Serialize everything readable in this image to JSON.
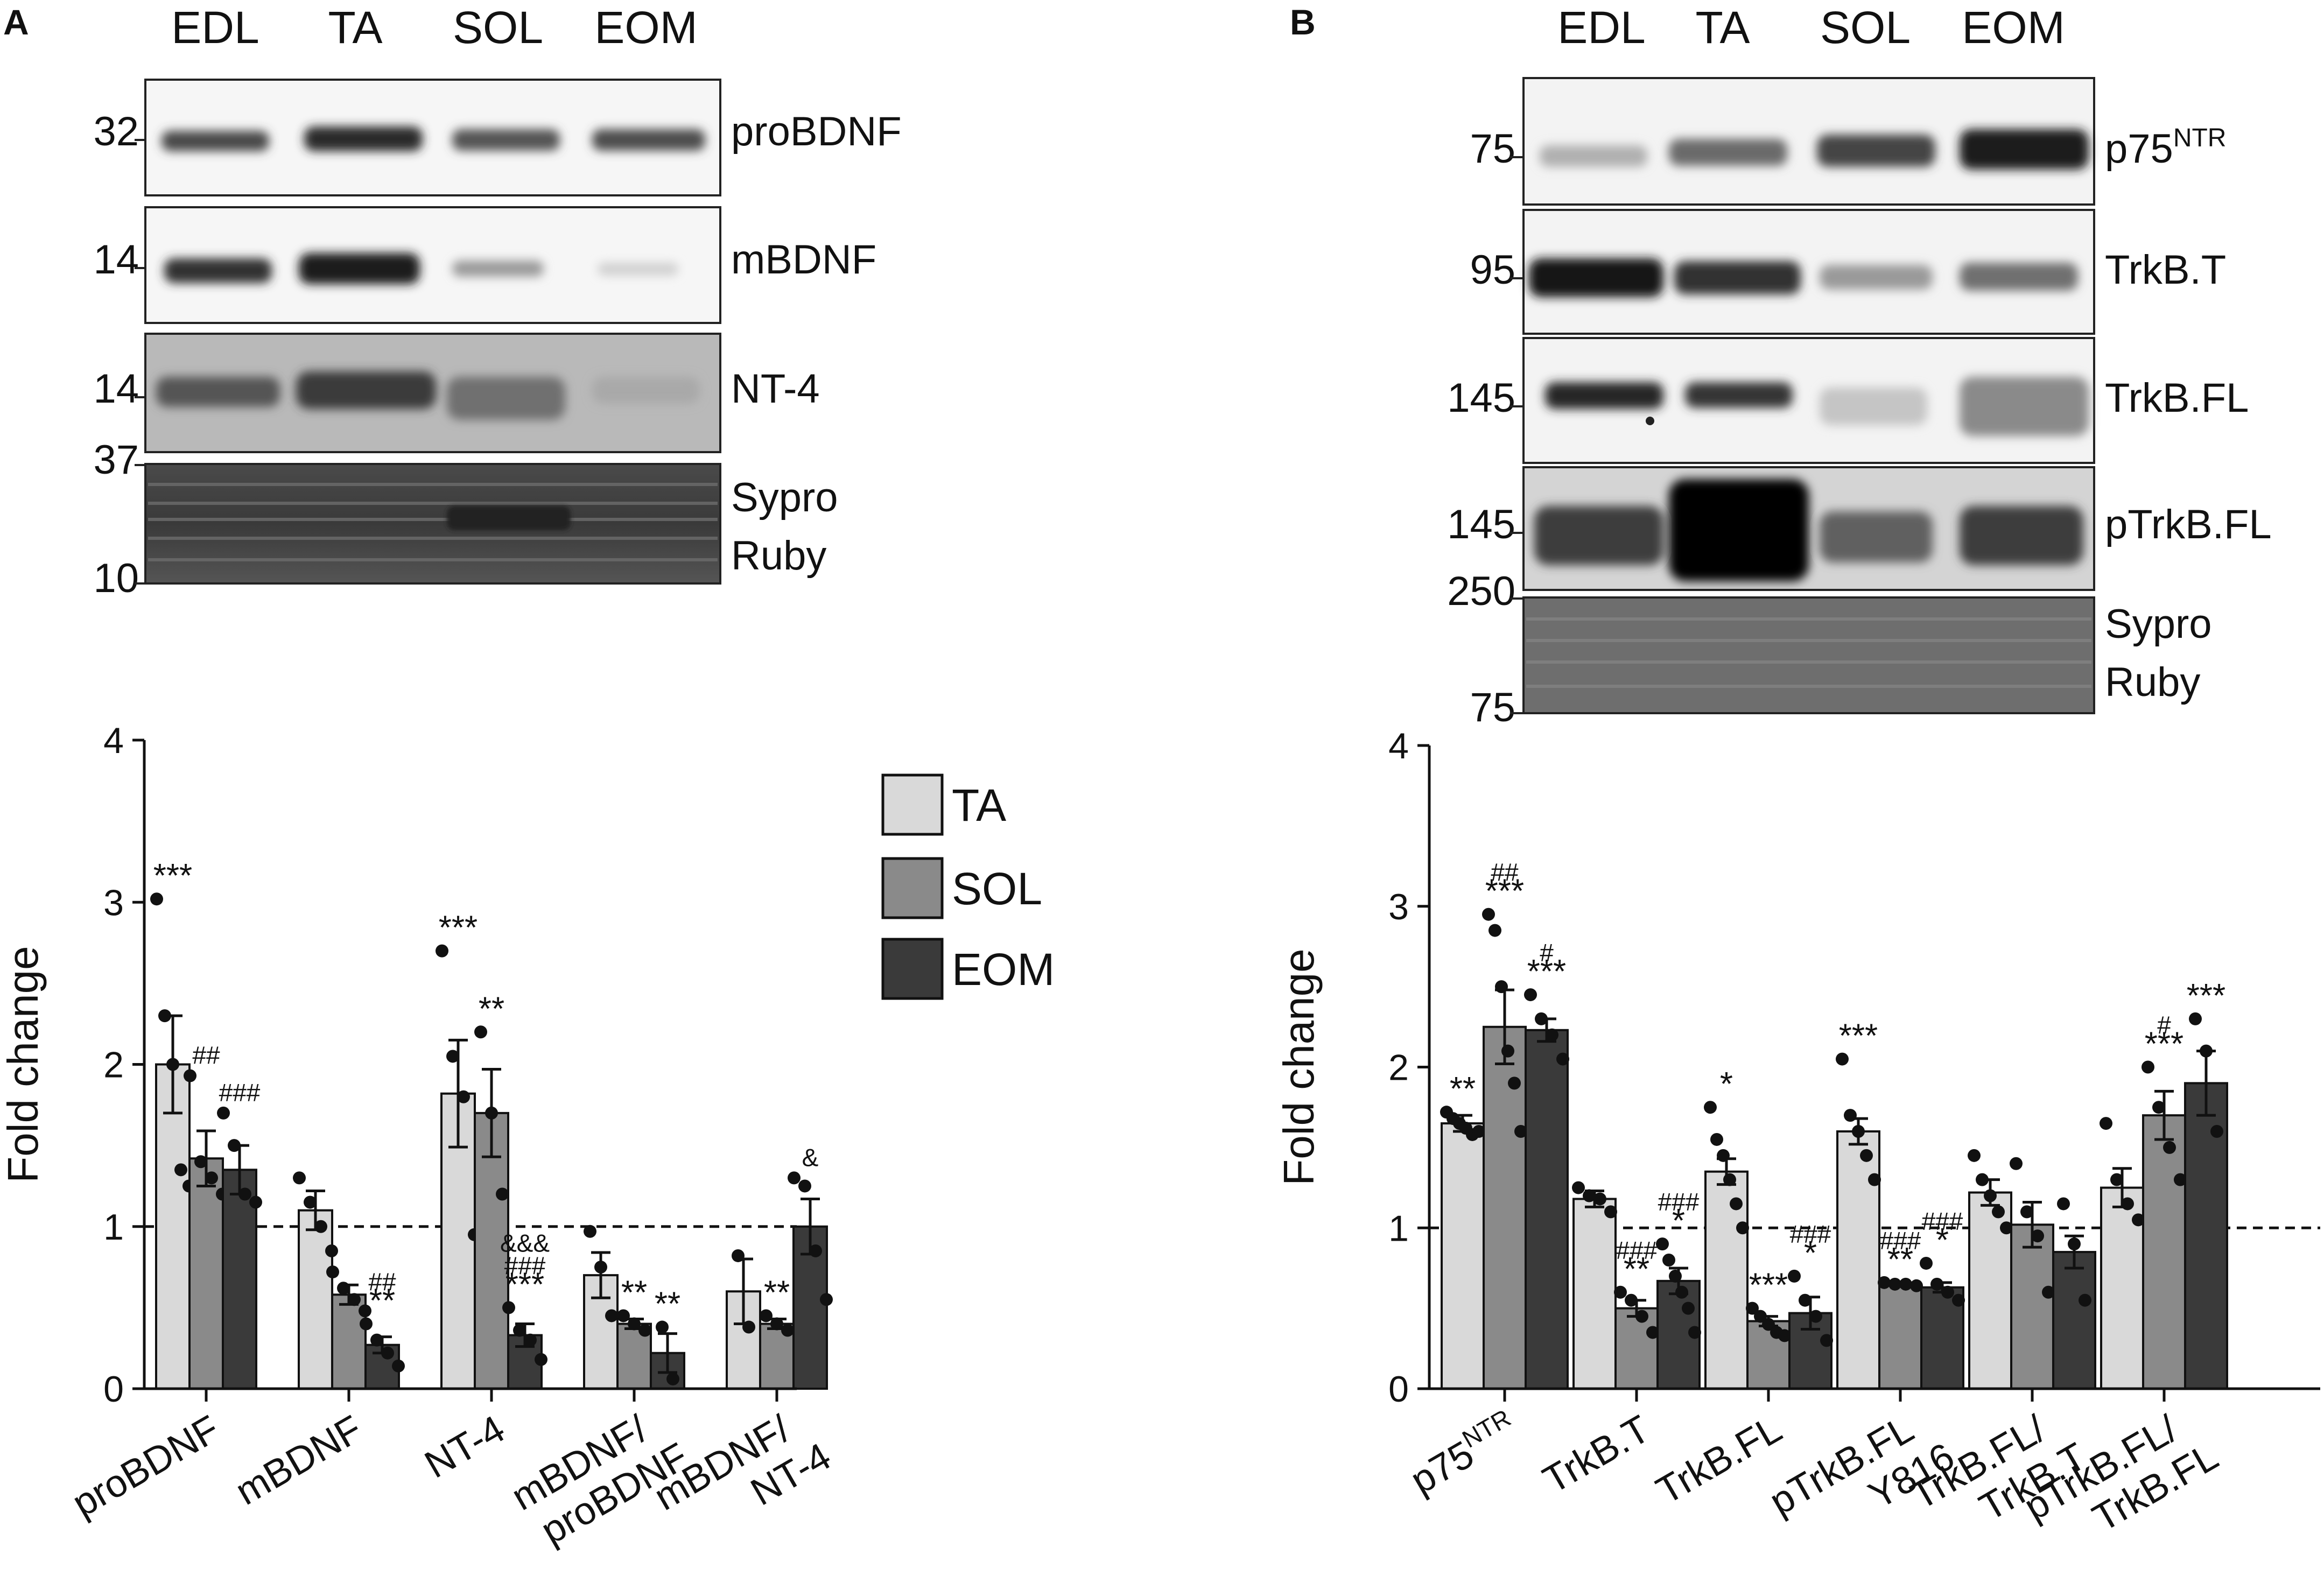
{
  "panel_a": {
    "letter": "A",
    "lanes": [
      "EDL",
      "TA",
      "SOL",
      "EOM"
    ],
    "blots": [
      {
        "name": "proBDNF",
        "mw": [
          "32"
        ]
      },
      {
        "name": "mBDNF",
        "mw": [
          "14"
        ]
      },
      {
        "name": "NT-4",
        "mw": [
          "14"
        ]
      },
      {
        "name": "Sypro Ruby",
        "mw": [
          "37",
          "10"
        ]
      }
    ]
  },
  "panel_b": {
    "letter": "B",
    "lanes": [
      "EDL",
      "TA",
      "SOL",
      "EOM"
    ],
    "blots": [
      {
        "name": "p75",
        "name_sup": "NTR",
        "mw": [
          "75"
        ]
      },
      {
        "name": "TrkB.T",
        "mw": [
          "95"
        ]
      },
      {
        "name": "TrkB.FL",
        "mw": [
          "145"
        ]
      },
      {
        "name": "pTrkB.FL",
        "mw": [
          "145"
        ]
      },
      {
        "name": "Sypro Ruby",
        "mw": [
          "250",
          "75"
        ]
      }
    ]
  },
  "legend": {
    "items": [
      {
        "label": "TA",
        "color": "#d9d9d9"
      },
      {
        "label": "SOL",
        "color": "#8a8a8a"
      },
      {
        "label": "EOM",
        "color": "#3a3a3a"
      }
    ]
  },
  "chart_data": [
    {
      "type": "bar",
      "panel": "A",
      "ylabel": "Fold change",
      "ylim": [
        0,
        4
      ],
      "yticks": [
        "0",
        "1",
        "2",
        "3",
        "4"
      ],
      "reference_line": 1,
      "series_names": [
        "TA",
        "SOL",
        "EOM"
      ],
      "categories": [
        {
          "label": "proBDNF",
          "lines": [
            "proBDNF"
          ]
        },
        {
          "label": "mBDNF",
          "lines": [
            "mBDNF"
          ]
        },
        {
          "label": "NT-4",
          "lines": [
            "NT-4"
          ]
        },
        {
          "label": "mBDNF/proBDNF",
          "lines": [
            "mBDNF/",
            "proBDNF"
          ]
        },
        {
          "label": "mBDNF/NT-4",
          "lines": [
            "mBDNF/",
            "NT-4"
          ]
        }
      ],
      "groups": [
        {
          "bars": [
            {
              "series": "TA",
              "value": 2.0,
              "sem": 0.3,
              "points": [
                3.02,
                2.3,
                2.0,
                1.35,
                1.25
              ],
              "annot": [
                "***"
              ]
            },
            {
              "series": "SOL",
              "value": 1.42,
              "sem": 0.17,
              "points": [
                1.93,
                1.4,
                1.3,
                1.2
              ],
              "annot": [
                "##"
              ]
            },
            {
              "series": "EOM",
              "value": 1.35,
              "sem": 0.15,
              "points": [
                1.7,
                1.5,
                1.2,
                1.15
              ],
              "annot": [
                "###"
              ]
            }
          ]
        },
        {
          "bars": [
            {
              "series": "TA",
              "value": 1.1,
              "sem": 0.12,
              "points": [
                1.3,
                1.15,
                1.0,
                0.85
              ],
              "annot": []
            },
            {
              "series": "SOL",
              "value": 0.58,
              "sem": 0.06,
              "points": [
                0.72,
                0.62,
                0.55,
                0.48
              ],
              "annot": []
            },
            {
              "series": "EOM",
              "value": 0.27,
              "sem": 0.05,
              "points": [
                0.4,
                0.3,
                0.22,
                0.14
              ],
              "annot": [
                "##",
                "**"
              ]
            }
          ]
        },
        {
          "bars": [
            {
              "series": "TA",
              "value": 1.82,
              "sem": 0.33,
              "points": [
                2.7,
                2.05,
                1.8,
                0.95
              ],
              "annot": [
                "***"
              ]
            },
            {
              "series": "SOL",
              "value": 1.7,
              "sem": 0.27,
              "points": [
                2.2,
                1.7,
                1.2
              ],
              "annot": [
                "**"
              ]
            },
            {
              "series": "EOM",
              "value": 0.33,
              "sem": 0.07,
              "points": [
                0.5,
                0.36,
                0.3,
                0.18
              ],
              "annot": [
                "&&&",
                "###",
                "***"
              ]
            }
          ]
        },
        {
          "bars": [
            {
              "series": "TA",
              "value": 0.7,
              "sem": 0.14,
              "points": [
                0.97,
                0.75,
                0.45
              ],
              "annot": []
            },
            {
              "series": "SOL",
              "value": 0.4,
              "sem": 0.03,
              "points": [
                0.45,
                0.4,
                0.36
              ],
              "annot": [
                "**"
              ]
            },
            {
              "series": "EOM",
              "value": 0.22,
              "sem": 0.12,
              "points": [
                0.38,
                0.06
              ],
              "annot": [
                "**"
              ]
            }
          ]
        },
        {
          "bars": [
            {
              "series": "TA",
              "value": 0.6,
              "sem": 0.2,
              "points": [
                0.82,
                0.38
              ],
              "annot": []
            },
            {
              "series": "SOL",
              "value": 0.4,
              "sem": 0.03,
              "points": [
                0.45,
                0.4,
                0.36
              ],
              "annot": [
                "**"
              ]
            },
            {
              "series": "EOM",
              "value": 1.0,
              "sem": 0.17,
              "points": [
                1.3,
                1.25,
                0.85,
                0.55
              ],
              "annot": [
                "&"
              ]
            }
          ]
        }
      ]
    },
    {
      "type": "bar",
      "panel": "B",
      "ylabel": "Fold change",
      "ylim": [
        0,
        4
      ],
      "yticks": [
        "0",
        "1",
        "2",
        "3",
        "4"
      ],
      "reference_line": 1,
      "series_names": [
        "TA",
        "SOL",
        "EOM"
      ],
      "categories": [
        {
          "label": "p75NTR",
          "lines": [
            "p75"
          ],
          "sup": "NTR"
        },
        {
          "label": "TrkB.T",
          "lines": [
            "TrkB.T"
          ]
        },
        {
          "label": "TrkB.FL",
          "lines": [
            "TrkB.FL"
          ]
        },
        {
          "label": "pTrkB.FL/Y816",
          "lines": [
            "pTrkB.FL",
            "Y816"
          ]
        },
        {
          "label": "TrkB.FL/TrkB.T",
          "lines": [
            "TrkB.FL/",
            "TrkB.T"
          ]
        },
        {
          "label": "pTrkB.FL/TrkB.FL",
          "lines": [
            "pTrkB.FL/",
            "TrkB.FL"
          ]
        }
      ],
      "groups": [
        {
          "bars": [
            {
              "series": "TA",
              "value": 1.65,
              "sem": 0.05,
              "points": [
                1.72,
                1.68,
                1.65,
                1.62,
                1.58,
                1.6
              ],
              "annot": [
                "**"
              ]
            },
            {
              "series": "SOL",
              "value": 2.25,
              "sem": 0.23,
              "points": [
                2.95,
                2.85,
                2.5,
                2.1,
                1.9,
                1.6
              ],
              "annot": [
                "##",
                "***"
              ]
            },
            {
              "series": "EOM",
              "value": 2.23,
              "sem": 0.07,
              "points": [
                2.45,
                2.3,
                2.2,
                2.05
              ],
              "annot": [
                "#",
                "***"
              ]
            }
          ]
        },
        {
          "bars": [
            {
              "series": "TA",
              "value": 1.18,
              "sem": 0.05,
              "points": [
                1.25,
                1.2,
                1.18,
                1.1
              ],
              "annot": []
            },
            {
              "series": "SOL",
              "value": 0.5,
              "sem": 0.05,
              "points": [
                0.6,
                0.55,
                0.45,
                0.35
              ],
              "annot": [
                "###",
                "**"
              ]
            },
            {
              "series": "EOM",
              "value": 0.67,
              "sem": 0.08,
              "points": [
                0.9,
                0.8,
                0.7,
                0.6,
                0.5,
                0.35
              ],
              "annot": [
                "###",
                "*"
              ]
            }
          ]
        },
        {
          "bars": [
            {
              "series": "TA",
              "value": 1.35,
              "sem": 0.08,
              "points": [
                1.75,
                1.55,
                1.45,
                1.3,
                1.15,
                1.0
              ],
              "annot": [
                "*"
              ]
            },
            {
              "series": "SOL",
              "value": 0.42,
              "sem": 0.03,
              "points": [
                0.5,
                0.45,
                0.4,
                0.35,
                0.33
              ],
              "annot": [
                "***"
              ]
            },
            {
              "series": "EOM",
              "value": 0.47,
              "sem": 0.1,
              "points": [
                0.7,
                0.55,
                0.45,
                0.3
              ],
              "annot": [
                "###",
                "*"
              ]
            }
          ]
        },
        {
          "bars": [
            {
              "series": "TA",
              "value": 1.6,
              "sem": 0.08,
              "points": [
                2.05,
                1.7,
                1.6,
                1.45,
                1.3
              ],
              "annot": [
                "***"
              ]
            },
            {
              "series": "SOL",
              "value": 0.65,
              "sem": 0.01,
              "points": [
                0.66,
                0.65,
                0.65,
                0.64
              ],
              "annot": [
                "###",
                "**"
              ]
            },
            {
              "series": "EOM",
              "value": 0.63,
              "sem": 0.03,
              "points": [
                0.78,
                0.65,
                0.6,
                0.55
              ],
              "annot": [
                "###",
                "*"
              ]
            }
          ]
        },
        {
          "bars": [
            {
              "series": "TA",
              "value": 1.22,
              "sem": 0.08,
              "points": [
                1.45,
                1.3,
                1.2,
                1.1,
                1.0
              ],
              "annot": []
            },
            {
              "series": "SOL",
              "value": 1.02,
              "sem": 0.14,
              "points": [
                1.4,
                1.1,
                0.95,
                0.6
              ],
              "annot": []
            },
            {
              "series": "EOM",
              "value": 0.85,
              "sem": 0.1,
              "points": [
                1.15,
                0.9,
                0.55
              ],
              "annot": []
            }
          ]
        },
        {
          "bars": [
            {
              "series": "TA",
              "value": 1.25,
              "sem": 0.12,
              "points": [
                1.65,
                1.3,
                1.15,
                1.05
              ],
              "annot": []
            },
            {
              "series": "SOL",
              "value": 1.7,
              "sem": 0.15,
              "points": [
                2.0,
                1.75,
                1.5,
                1.3
              ],
              "annot": [
                "#",
                "***"
              ]
            },
            {
              "series": "EOM",
              "value": 1.9,
              "sem": 0.2,
              "points": [
                2.3,
                2.1,
                1.6
              ],
              "annot": [
                "***"
              ]
            }
          ]
        }
      ]
    }
  ]
}
